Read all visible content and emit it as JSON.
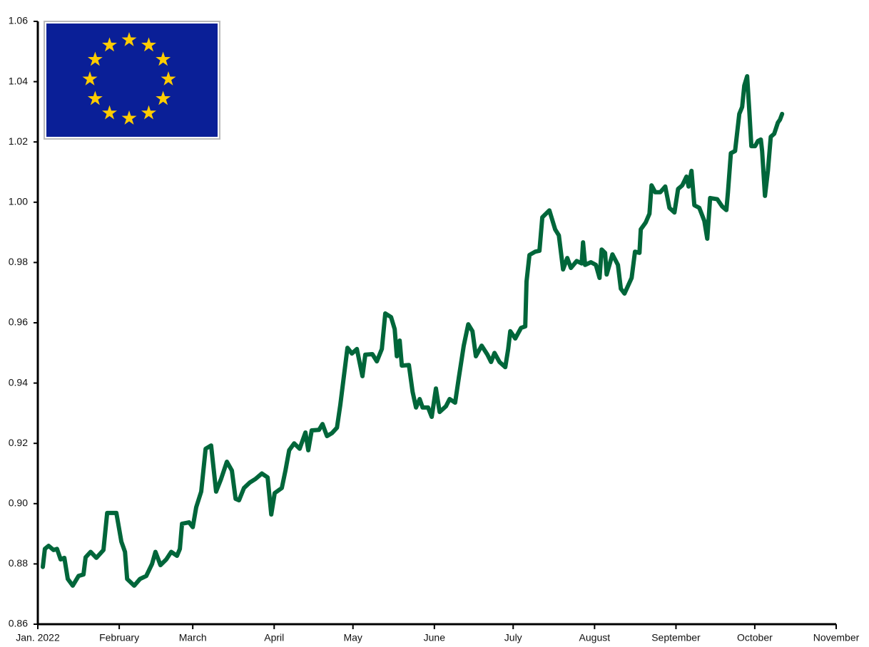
{
  "chart_data": {
    "type": "line",
    "x": [
      1.9,
      2.7,
      4.1,
      6.0,
      7.3,
      8.7,
      10.1,
      11.4,
      13.3,
      15.5,
      17.4,
      18.2,
      20.1,
      22.3,
      25.0,
      26.4,
      29.9,
      31.8,
      33.2,
      34.0,
      36.7,
      38.9,
      41.3,
      43.5,
      44.8,
      46.7,
      48.9,
      50.8,
      53.0,
      54.1,
      54.9,
      57.6,
      59.0,
      60.3,
      62.2,
      63.9,
      66.0,
      67.9,
      69.8,
      72.0,
      73.9,
      75.3,
      76.6,
      78.5,
      80.7,
      82.9,
      85.3,
      87.5,
      88.9,
      90.2,
      92.9,
      94.3,
      95.7,
      97.6,
      99.7,
      101.9,
      103.0,
      104.3,
      107.1,
      108.4,
      110.1,
      112.0,
      113.9,
      115.2,
      116.3,
      117.9,
      119.6,
      121.5,
      123.6,
      124.7,
      127.4,
      129.1,
      131.0,
      132.3,
      134.5,
      135.9,
      136.7,
      137.8,
      138.6,
      141.3,
      142.7,
      144.0,
      145.4,
      146.5,
      148.6,
      150.0,
      151.6,
      153.0,
      155.4,
      156.8,
      158.9,
      160.3,
      162.2,
      163.9,
      165.5,
      166.8,
      169.0,
      171.2,
      172.6,
      173.9,
      175.8,
      178.0,
      179.1,
      179.9,
      181.8,
      184.0,
      185.6,
      186.1,
      187.2,
      189.4,
      191.0,
      192.1,
      194.8,
      197.0,
      198.4,
      200.0,
      201.6,
      203.0,
      205.2,
      207.1,
      207.6,
      208.4,
      210.6,
      212.5,
      213.9,
      214.7,
      216.0,
      216.6,
      218.8,
      220.9,
      222.0,
      223.4,
      226.1,
      227.4,
      229.1,
      229.6,
      231.5,
      232.9,
      233.7,
      235.1,
      237.0,
      238.9,
      240.5,
      242.4,
      243.8,
      245.4,
      247.0,
      247.8,
      248.9,
      250.0,
      251.9,
      253.8,
      254.9,
      256.0,
      258.7,
      260.6,
      262.2,
      262.8,
      263.9,
      265.5,
      267.1,
      268.2,
      269.0,
      270.1,
      270.9,
      271.7,
      273.1,
      274.2,
      275.3,
      275.8,
      276.9,
      278.0,
      279.1,
      280.4,
      281.8,
      282.6,
      283.4
    ],
    "series": [
      {
        "color": "#00663a",
        "values": [
          0.879,
          0.885,
          0.886,
          0.8846,
          0.885,
          0.8815,
          0.882,
          0.875,
          0.8728,
          0.876,
          0.8765,
          0.8822,
          0.884,
          0.882,
          0.8846,
          0.8969,
          0.8969,
          0.8874,
          0.884,
          0.875,
          0.8728,
          0.875,
          0.876,
          0.88,
          0.884,
          0.8796,
          0.8815,
          0.884,
          0.8827,
          0.885,
          0.8933,
          0.8938,
          0.8922,
          0.8988,
          0.904,
          0.9182,
          0.9193,
          0.904,
          0.9082,
          0.9139,
          0.911,
          0.9016,
          0.9011,
          0.9052,
          0.907,
          0.9082,
          0.91,
          0.9087,
          0.8964,
          0.9035,
          0.9052,
          0.911,
          0.9177,
          0.92,
          0.9182,
          0.9236,
          0.9177,
          0.9243,
          0.9245,
          0.9264,
          0.9224,
          0.9234,
          0.9252,
          0.9328,
          0.9406,
          0.9517,
          0.9498,
          0.9513,
          0.9423,
          0.9494,
          0.9496,
          0.9472,
          0.9513,
          0.9631,
          0.9619,
          0.9579,
          0.9489,
          0.9541,
          0.9458,
          0.946,
          0.9371,
          0.9319,
          0.9347,
          0.9319,
          0.9319,
          0.9288,
          0.9382,
          0.9304,
          0.9323,
          0.9347,
          0.9335,
          0.9418,
          0.9524,
          0.9595,
          0.9572,
          0.9489,
          0.9524,
          0.9494,
          0.947,
          0.95,
          0.947,
          0.9453,
          0.9513,
          0.9572,
          0.9548,
          0.9583,
          0.9588,
          0.9737,
          0.9825,
          0.9836,
          0.9839,
          0.995,
          0.9973,
          0.991,
          0.989,
          0.9777,
          0.9815,
          0.9782,
          0.9805,
          0.9797,
          0.9867,
          0.9792,
          0.9801,
          0.9792,
          0.9749,
          0.9843,
          0.9832,
          0.976,
          0.9827,
          0.9792,
          0.9713,
          0.9697,
          0.9749,
          0.9836,
          0.9832,
          0.991,
          0.9933,
          0.9962,
          1.0056,
          1.0033,
          1.0033,
          1.0052,
          0.9981,
          0.9966,
          1.0044,
          1.0056,
          1.0085,
          1.0052,
          1.0104,
          0.999,
          0.9981,
          0.9938,
          0.9879,
          1.0014,
          1.001,
          0.9986,
          0.9974,
          1.0033,
          1.0163,
          1.017,
          1.0293,
          1.0316,
          1.0387,
          1.0418,
          1.0305,
          1.0186,
          1.0186,
          1.0203,
          1.0208,
          1.017,
          1.0021,
          1.0104,
          1.0217,
          1.0227,
          1.0264,
          1.0274,
          1.0293
        ]
      }
    ],
    "xlim": [
      0,
      304
    ],
    "xticks": [
      {
        "value": 0,
        "label": "Jan. 2022"
      },
      {
        "value": 31,
        "label": "February"
      },
      {
        "value": 59,
        "label": "March"
      },
      {
        "value": 90,
        "label": "April"
      },
      {
        "value": 120,
        "label": "May"
      },
      {
        "value": 151,
        "label": "June"
      },
      {
        "value": 181,
        "label": "July"
      },
      {
        "value": 212,
        "label": "August"
      },
      {
        "value": 243,
        "label": "September"
      },
      {
        "value": 273,
        "label": "October"
      },
      {
        "value": 304,
        "label": "November"
      }
    ],
    "ylim": [
      0.86,
      1.06
    ],
    "yticks": [
      {
        "value": 0.86,
        "label": "0.86"
      },
      {
        "value": 0.88,
        "label": "0.88"
      },
      {
        "value": 0.9,
        "label": "0.90"
      },
      {
        "value": 0.92,
        "label": "0.92"
      },
      {
        "value": 0.94,
        "label": "0.94"
      },
      {
        "value": 0.96,
        "label": "0.96"
      },
      {
        "value": 0.98,
        "label": "0.98"
      },
      {
        "value": 1.0,
        "label": "1.00"
      },
      {
        "value": 1.02,
        "label": "1.02"
      },
      {
        "value": 1.04,
        "label": "1.04"
      },
      {
        "value": 1.06,
        "label": "1.06"
      }
    ],
    "grid": false
  }
}
